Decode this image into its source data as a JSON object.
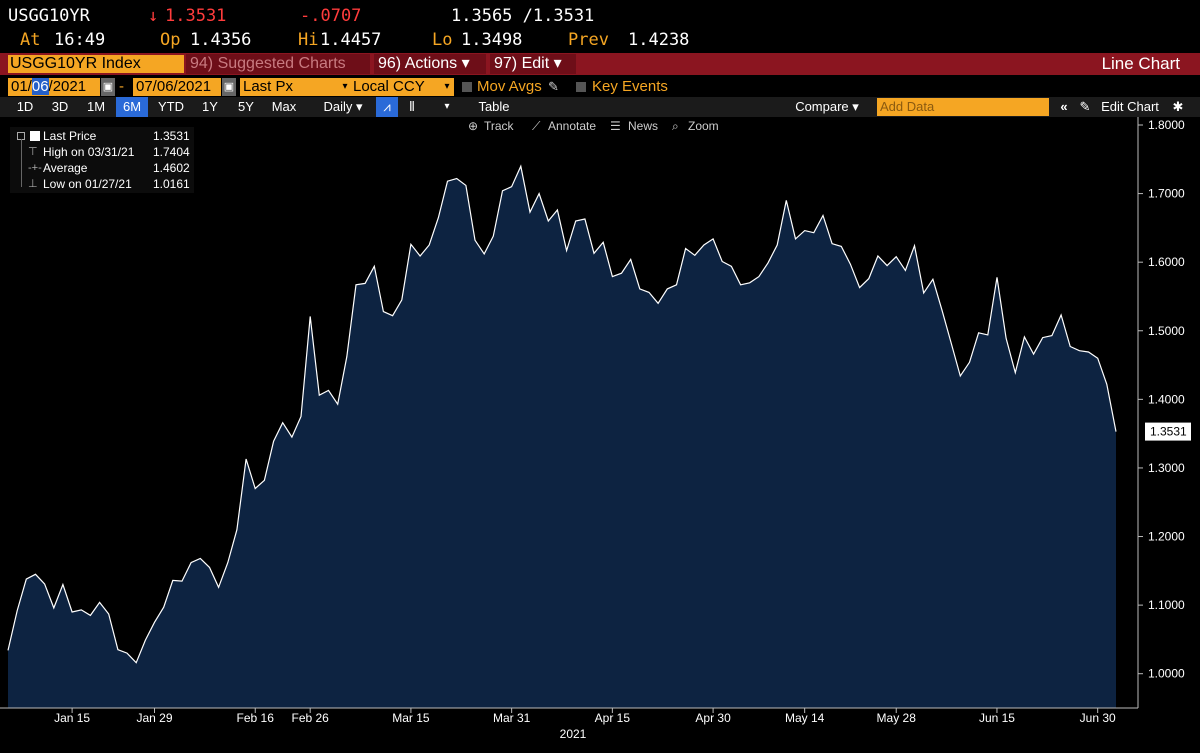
{
  "quote": {
    "ticker": "USGG10YR",
    "arrow": "↓",
    "last": "1.3531",
    "change": "-.0707",
    "bid_ask": "1.3565 /1.3531",
    "at_label": "At",
    "at_value": "16:49",
    "open_label": "Op",
    "open_value": "1.4356",
    "high_label": "Hi",
    "high_value": "1.4457",
    "low_label": "Lo",
    "low_value": "1.3498",
    "prev_label": "Prev",
    "prev_value": "1.4238"
  },
  "titlebar": {
    "security": "USGG10YR Index",
    "btn_suggested": "94) Suggested Charts",
    "btn_actions": "96) Actions ▾",
    "btn_edit": "97) Edit ▾",
    "view_name": "Line Chart"
  },
  "range": {
    "start_prefix": "01/",
    "start_selected": "06",
    "start_suffix": "/2021",
    "dash": "-",
    "end": "07/06/2021",
    "field": "Last Px",
    "currency": "Local CCY",
    "mov_avgs": "Mov Avgs",
    "key_events": "Key Events"
  },
  "periods": [
    "1D",
    "3D",
    "1M",
    "6M",
    "YTD",
    "1Y",
    "5Y",
    "Max"
  ],
  "active_period": "6M",
  "toolbar": {
    "frequency": "Daily ▾",
    "table": "Table",
    "compare": "Compare ▾",
    "add_data_placeholder": "Add Data",
    "edit_chart": "Edit Chart",
    "track": "Track",
    "annotate": "Annotate",
    "news": "News",
    "zoom": "Zoom"
  },
  "legend": {
    "last_price_label": "Last Price",
    "last_price_value": "1.3531",
    "high_label": "High on 03/31/21",
    "high_value": "1.7404",
    "average_label": "Average",
    "average_value": "1.4602",
    "low_label": "Low on 01/27/21",
    "low_value": "1.0161"
  },
  "colors": {
    "area_fill": "#0d2341",
    "line": "#ffffff",
    "accent_orange": "#f5a623",
    "titlebar_red": "#8b1520",
    "quote_red": "#ff3c3c"
  },
  "chart_data": {
    "type": "area",
    "x_label": "2021",
    "ylim": [
      0.95,
      1.8
    ],
    "y_ticks": [
      "1.0000",
      "1.1000",
      "1.2000",
      "1.3000",
      "1.4000",
      "1.5000",
      "1.6000",
      "1.7000",
      "1.8000"
    ],
    "x_ticks": [
      "Jan 15",
      "Jan 29",
      "Feb 16",
      "Feb 26",
      "Mar 15",
      "Mar 31",
      "Apr 15",
      "Apr 30",
      "May 14",
      "May 28",
      "Jun 15",
      "Jun 30"
    ],
    "last_value_tag": "1.3531",
    "series": [
      {
        "name": "Last Price",
        "values": [
          1.034,
          1.092,
          1.138,
          1.145,
          1.131,
          1.096,
          1.13,
          1.09,
          1.093,
          1.085,
          1.104,
          1.087,
          1.035,
          1.03,
          1.016,
          1.049,
          1.075,
          1.097,
          1.136,
          1.135,
          1.162,
          1.168,
          1.155,
          1.126,
          1.162,
          1.21,
          1.313,
          1.27,
          1.282,
          1.339,
          1.366,
          1.345,
          1.375,
          1.521,
          1.406,
          1.413,
          1.393,
          1.462,
          1.567,
          1.569,
          1.594,
          1.528,
          1.522,
          1.545,
          1.626,
          1.609,
          1.625,
          1.665,
          1.718,
          1.722,
          1.712,
          1.632,
          1.612,
          1.638,
          1.704,
          1.71,
          1.74,
          1.673,
          1.7,
          1.66,
          1.676,
          1.617,
          1.66,
          1.663,
          1.613,
          1.629,
          1.579,
          1.584,
          1.604,
          1.561,
          1.556,
          1.54,
          1.561,
          1.567,
          1.62,
          1.61,
          1.625,
          1.634,
          1.601,
          1.594,
          1.567,
          1.57,
          1.579,
          1.599,
          1.625,
          1.69,
          1.634,
          1.646,
          1.643,
          1.668,
          1.627,
          1.623,
          1.597,
          1.563,
          1.576,
          1.609,
          1.595,
          1.608,
          1.588,
          1.624,
          1.555,
          1.575,
          1.53,
          1.482,
          1.434,
          1.454,
          1.497,
          1.494,
          1.578,
          1.489,
          1.439,
          1.491,
          1.466,
          1.49,
          1.493,
          1.523,
          1.477,
          1.471,
          1.469,
          1.46,
          1.422,
          1.353
        ]
      }
    ]
  }
}
